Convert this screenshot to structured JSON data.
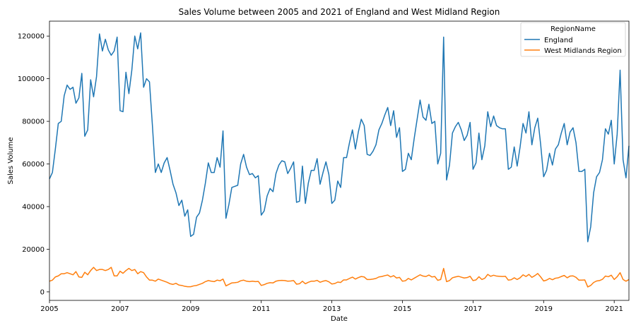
{
  "chart_data": {
    "type": "line",
    "title": "Sales Volume between 2005 and 2021 of England and West Midland Region",
    "xlabel": "Date",
    "ylabel": "Sales Volume",
    "x_start": "2005-01",
    "x_end": "2021-06",
    "x_ticks": [
      "2005",
      "2007",
      "2009",
      "2011",
      "2013",
      "2015",
      "2017",
      "2019",
      "2021"
    ],
    "ylim": [
      -4000,
      127000
    ],
    "y_ticks": [
      0,
      20000,
      40000,
      60000,
      80000,
      100000,
      120000
    ],
    "grid": false,
    "legend": {
      "title": "RegionName",
      "placement": "top-right"
    },
    "series": [
      {
        "name": "England",
        "color": "#1f77b4",
        "values": [
          53000,
          56000,
          67000,
          79000,
          80000,
          92000,
          97000,
          95000,
          96000,
          88500,
          91000,
          102500,
          73000,
          76000,
          99500,
          91500,
          101000,
          121000,
          113000,
          118500,
          113500,
          111000,
          113000,
          119500,
          85000,
          84500,
          103000,
          93000,
          104000,
          120000,
          114000,
          121500,
          96000,
          100000,
          98500,
          78000,
          56000,
          60000,
          56000,
          60500,
          63000,
          57000,
          50500,
          46500,
          40500,
          43000,
          35500,
          38500,
          26000,
          27000,
          35000,
          37000,
          43000,
          51000,
          60500,
          56000,
          56000,
          63000,
          58500,
          75500,
          34500,
          41000,
          49000,
          49500,
          50000,
          60000,
          64500,
          58500,
          55000,
          55500,
          53500,
          54500,
          36000,
          38000,
          45000,
          48500,
          47000,
          55500,
          59500,
          61500,
          61000,
          55500,
          58000,
          61000,
          42000,
          42500,
          59000,
          41500,
          51000,
          57000,
          57000,
          62500,
          50500,
          56000,
          61000,
          55000,
          41500,
          43000,
          52000,
          49000,
          63000,
          63000,
          70000,
          76000,
          67000,
          75000,
          81000,
          78000,
          64500,
          64000,
          66000,
          69000,
          76000,
          79000,
          83000,
          86500,
          78000,
          85000,
          72500,
          77000,
          56500,
          57500,
          65000,
          62000,
          72000,
          81000,
          90000,
          82000,
          80500,
          88000,
          79000,
          80000,
          60000,
          65000,
          119500,
          52500,
          59500,
          74500,
          77500,
          79500,
          76000,
          71000,
          73500,
          79500,
          57500,
          60500,
          74500,
          62000,
          68500,
          84500,
          77500,
          82500,
          78000,
          77000,
          76500,
          76500,
          57500,
          58500,
          68000,
          59000,
          68000,
          79000,
          74500,
          84500,
          69000,
          77000,
          81500,
          69000,
          54000,
          57000,
          65000,
          59500,
          67000,
          69000,
          74500,
          79000,
          69000,
          75000,
          77000,
          70000,
          56500,
          56500,
          57500,
          23500,
          30500,
          46500,
          54000,
          56000,
          62000,
          76500,
          74000,
          80500,
          60000,
          74000,
          104000,
          62000,
          53500,
          68500
        ]
      },
      {
        "name": "West Midlands Region",
        "color": "#ff7f0e",
        "values": [
          5000,
          5500,
          7000,
          7500,
          8500,
          8500,
          9000,
          8500,
          8000,
          9500,
          7000,
          6800,
          9200,
          8000,
          10000,
          11500,
          10000,
          10500,
          10500,
          10000,
          10500,
          11500,
          7500,
          7500,
          9700,
          8700,
          10000,
          11000,
          10000,
          10500,
          8500,
          9500,
          9000,
          7000,
          5500,
          5500,
          5000,
          6000,
          5500,
          5000,
          4500,
          3800,
          3500,
          4000,
          3200,
          3000,
          2600,
          2400,
          2400,
          2800,
          3000,
          3500,
          4000,
          4800,
          5300,
          5000,
          4800,
          5500,
          5200,
          6000,
          2800,
          3500,
          4200,
          4300,
          4500,
          5200,
          5500,
          5000,
          4800,
          5000,
          4800,
          4900,
          3000,
          3400,
          4000,
          4300,
          4200,
          5000,
          5300,
          5400,
          5300,
          5000,
          5100,
          5300,
          3600,
          3800,
          5000,
          3800,
          4500,
          5000,
          5000,
          5400,
          4500,
          5000,
          5300,
          4700,
          3700,
          3900,
          4600,
          4400,
          5600,
          5600,
          6300,
          6900,
          6000,
          6700,
          7200,
          7000,
          5800,
          5800,
          6000,
          6300,
          7000,
          7200,
          7600,
          7900,
          7000,
          7600,
          6500,
          6800,
          5000,
          5200,
          6300,
          5600,
          6400,
          7200,
          8000,
          7400,
          7200,
          7900,
          7000,
          7200,
          5400,
          5800,
          11000,
          4800,
          5300,
          6600,
          7000,
          7300,
          6900,
          6500,
          6700,
          7300,
          5300,
          5600,
          7100,
          5800,
          6400,
          8200,
          7300,
          7800,
          7400,
          7300,
          7200,
          7300,
          5500,
          5700,
          6600,
          5800,
          6600,
          8000,
          7200,
          8200,
          6800,
          7600,
          8600,
          7000,
          5100,
          5500,
          6300,
          5700,
          6400,
          6600,
          7200,
          7700,
          6600,
          7400,
          7500,
          6800,
          5500,
          5500,
          5600,
          2300,
          3000,
          4400,
          5100,
          5300,
          5900,
          7400,
          7100,
          7800,
          5800,
          7100,
          9000,
          5800,
          5000,
          5800
        ]
      }
    ]
  }
}
